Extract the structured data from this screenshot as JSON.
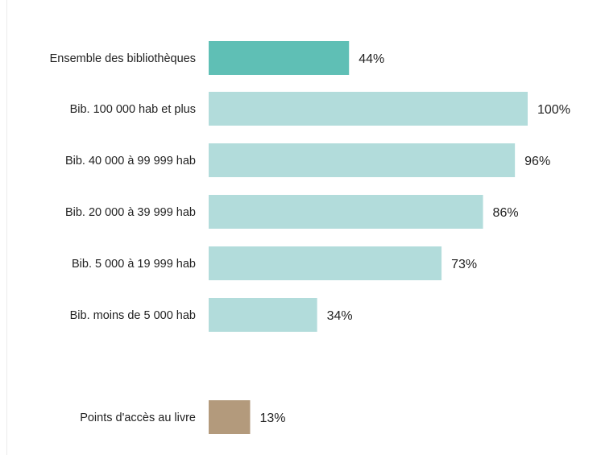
{
  "chart_data": {
    "type": "bar",
    "orientation": "horizontal",
    "title": "",
    "xlabel": "",
    "ylabel": "",
    "xlim": [
      0,
      100
    ],
    "grid": false,
    "legend": "none",
    "value_suffix": "%",
    "categories": [
      "Ensemble des bibliothèques",
      "Bib. 100 000 hab et plus",
      "Bib. 40 000 à 99 999 hab",
      "Bib. 20 000 à 39 999 hab",
      "Bib. 5 000 à 19 999 hab",
      "Bib. moins de 5 000 hab",
      "Points d'accès au livre"
    ],
    "values": [
      44,
      100,
      96,
      86,
      73,
      34,
      13
    ],
    "value_labels": [
      "44%",
      "100%",
      "96%",
      "86%",
      "73%",
      "34%",
      "13%"
    ],
    "bar_colors": [
      "#5fbfb5",
      "#b2dcdb",
      "#b2dcdb",
      "#b2dcdb",
      "#b2dcdb",
      "#b2dcdb",
      "#b39a7c"
    ]
  }
}
